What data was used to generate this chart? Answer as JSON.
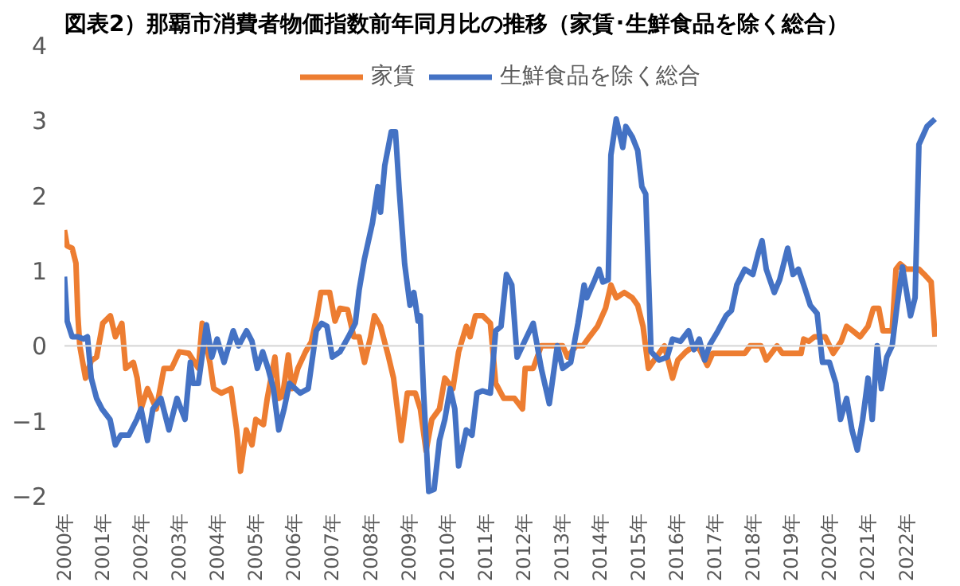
{
  "chart_data": {
    "type": "line",
    "title": "図表2）那覇市消費者物価指数前年同月比の推移（家賃･生鮮食品を除く総合）",
    "xlim": [
      2000,
      2022.8
    ],
    "ylim": [
      -2,
      4
    ],
    "yticks": [
      -2,
      -1,
      0,
      1,
      2,
      3,
      4
    ],
    "xticks": [
      {
        "value": 2000,
        "label": "2000年"
      },
      {
        "value": 2001,
        "label": "2001年"
      },
      {
        "value": 2002,
        "label": "2002年"
      },
      {
        "value": 2003,
        "label": "2003年"
      },
      {
        "value": 2004,
        "label": "2004年"
      },
      {
        "value": 2005,
        "label": "2005年"
      },
      {
        "value": 2006,
        "label": "2006年"
      },
      {
        "value": 2007,
        "label": "2007年"
      },
      {
        "value": 2008,
        "label": "2008年"
      },
      {
        "value": 2009,
        "label": "2009年"
      },
      {
        "value": 2010,
        "label": "2010年"
      },
      {
        "value": 2011,
        "label": "2011年"
      },
      {
        "value": 2012,
        "label": "2012年"
      },
      {
        "value": 2013,
        "label": "2013年"
      },
      {
        "value": 2014,
        "label": "2014年"
      },
      {
        "value": 2015,
        "label": "2015年"
      },
      {
        "value": 2016,
        "label": "2016年"
      },
      {
        "value": 2017,
        "label": "2017年"
      },
      {
        "value": 2018,
        "label": "2018年"
      },
      {
        "value": 2019,
        "label": "2019年"
      },
      {
        "value": 2020,
        "label": "2020年"
      },
      {
        "value": 2021,
        "label": "2021年"
      },
      {
        "value": 2022,
        "label": "2022年"
      }
    ],
    "grid": false,
    "legend": "top",
    "marker": "none",
    "line_style": "solid",
    "ref_lines": [
      {
        "axis": "y",
        "value": 0,
        "color": "#d9d9d9"
      }
    ],
    "series": [
      {
        "name": "家賃",
        "color": "#ed7d31",
        "x": [
          2000.0,
          2000.07,
          2000.2,
          2000.3,
          2000.35,
          2000.4,
          2000.55,
          2000.7,
          2000.84,
          2001.0,
          2001.2,
          2001.33,
          2001.5,
          2001.6,
          2001.8,
          2001.9,
          2002.0,
          2002.17,
          2002.4,
          2002.6,
          2002.8,
          2003.0,
          2003.25,
          2003.5,
          2003.6,
          2003.8,
          2003.9,
          2004.1,
          2004.35,
          2004.5,
          2004.6,
          2004.75,
          2004.9,
          2005.0,
          2005.2,
          2005.3,
          2005.5,
          2005.6,
          2005.7,
          2005.85,
          2005.95,
          2006.1,
          2006.3,
          2006.45,
          2006.6,
          2006.7,
          2006.93,
          2007.07,
          2007.2,
          2007.4,
          2007.56,
          2007.7,
          2007.84,
          2008.0,
          2008.1,
          2008.26,
          2008.47,
          2008.6,
          2008.8,
          2008.96,
          2009.17,
          2009.3,
          2009.45,
          2009.6,
          2009.8,
          2009.94,
          2010.15,
          2010.3,
          2010.5,
          2010.6,
          2010.74,
          2010.93,
          2011.13,
          2011.27,
          2011.48,
          2011.76,
          2011.97,
          2012.04,
          2012.25,
          2012.46,
          2013.02,
          2013.15,
          2013.37,
          2013.55,
          2013.72,
          2013.93,
          2014.14,
          2014.28,
          2014.42,
          2014.63,
          2014.84,
          2014.98,
          2015.12,
          2015.26,
          2015.47,
          2015.68,
          2015.89,
          2016.03,
          2016.24,
          2016.45,
          2016.6,
          2016.8,
          2016.94,
          2017.78,
          2017.92,
          2018.2,
          2018.34,
          2018.62,
          2018.76,
          2019.25,
          2019.32,
          2019.45,
          2019.6,
          2019.88,
          2020.09,
          2020.3,
          2020.44,
          2020.6,
          2020.79,
          2021.0,
          2021.14,
          2021.28,
          2021.39,
          2021.63,
          2021.73,
          2021.84,
          2022.0,
          2022.33,
          2022.47,
          2022.65,
          2022.75
        ],
        "values": [
          1.54,
          1.33,
          1.3,
          1.1,
          0.4,
          0.0,
          -0.43,
          -0.2,
          -0.15,
          0.3,
          0.4,
          0.12,
          0.3,
          -0.3,
          -0.22,
          -0.43,
          -0.84,
          -0.57,
          -0.84,
          -0.3,
          -0.3,
          -0.08,
          -0.1,
          -0.3,
          0.3,
          -0.22,
          -0.57,
          -0.63,
          -0.57,
          -1.12,
          -1.67,
          -1.12,
          -1.32,
          -0.98,
          -1.05,
          -0.7,
          -0.15,
          -0.7,
          -0.67,
          -0.12,
          -0.57,
          -0.3,
          -0.08,
          0.05,
          0.4,
          0.71,
          0.71,
          0.33,
          0.5,
          0.48,
          0.12,
          0.12,
          -0.22,
          0.12,
          0.4,
          0.26,
          -0.15,
          -0.43,
          -1.26,
          -0.63,
          -0.63,
          -0.84,
          -1.4,
          -0.98,
          -0.84,
          -0.43,
          -0.57,
          -0.08,
          0.26,
          0.12,
          0.4,
          0.4,
          0.3,
          -0.5,
          -0.7,
          -0.7,
          -0.84,
          -0.3,
          -0.3,
          0.0,
          0.0,
          -0.15,
          0.0,
          0.0,
          0.12,
          0.26,
          0.5,
          0.81,
          0.64,
          0.71,
          0.64,
          0.54,
          0.26,
          -0.3,
          -0.15,
          0.0,
          -0.43,
          -0.19,
          -0.08,
          0.0,
          -0.05,
          -0.26,
          -0.1,
          -0.1,
          0.0,
          0.0,
          -0.19,
          0.0,
          -0.1,
          -0.1,
          0.09,
          0.06,
          0.12,
          0.12,
          -0.1,
          0.06,
          0.26,
          0.2,
          0.12,
          0.26,
          0.5,
          0.5,
          0.2,
          0.2,
          1.02,
          1.09,
          1.02,
          1.02,
          0.95,
          0.85,
          0.12
        ]
      },
      {
        "name": "生鮮食品を除く総合",
        "color": "#4472c4",
        "x": [
          2000.0,
          2000.07,
          2000.2,
          2000.35,
          2000.5,
          2000.6,
          2000.7,
          2000.84,
          2000.98,
          2001.19,
          2001.33,
          2001.47,
          2001.68,
          2001.89,
          2002.0,
          2002.17,
          2002.31,
          2002.52,
          2002.73,
          2002.94,
          2003.15,
          2003.29,
          2003.36,
          2003.5,
          2003.71,
          2003.85,
          2003.99,
          2004.17,
          2004.41,
          2004.55,
          2004.76,
          2004.9,
          2005.04,
          2005.18,
          2005.32,
          2005.46,
          2005.6,
          2005.74,
          2005.88,
          2006.16,
          2006.37,
          2006.58,
          2006.72,
          2006.86,
          2007.0,
          2007.2,
          2007.42,
          2007.6,
          2007.7,
          2007.84,
          2008.05,
          2008.19,
          2008.26,
          2008.37,
          2008.54,
          2008.65,
          2008.75,
          2008.89,
          2009.03,
          2009.13,
          2009.24,
          2009.3,
          2009.38,
          2009.52,
          2009.66,
          2009.8,
          2009.94,
          2010.08,
          2010.2,
          2010.3,
          2010.5,
          2010.65,
          2010.78,
          2010.92,
          2011.13,
          2011.27,
          2011.41,
          2011.55,
          2011.69,
          2011.83,
          2011.97,
          2012.25,
          2012.46,
          2012.67,
          2012.88,
          2013.02,
          2013.23,
          2013.42,
          2013.58,
          2013.65,
          2013.86,
          2013.97,
          2014.07,
          2014.21,
          2014.28,
          2014.42,
          2014.59,
          2014.67,
          2014.84,
          2014.98,
          2015.09,
          2015.19,
          2015.33,
          2015.54,
          2015.75,
          2015.89,
          2016.1,
          2016.31,
          2016.45,
          2016.59,
          2016.73,
          2016.87,
          2017.08,
          2017.29,
          2017.43,
          2017.57,
          2017.78,
          2017.99,
          2018.13,
          2018.23,
          2018.34,
          2018.55,
          2018.69,
          2018.9,
          2019.04,
          2019.18,
          2019.32,
          2019.49,
          2019.67,
          2019.81,
          2019.99,
          2020.16,
          2020.28,
          2020.44,
          2020.58,
          2020.72,
          2020.86,
          2021.0,
          2021.11,
          2021.24,
          2021.35,
          2021.49,
          2021.63,
          2021.76,
          2021.9,
          2022.11,
          2022.23,
          2022.33,
          2022.54,
          2022.75
        ],
        "values": [
          0.92,
          0.33,
          0.12,
          0.12,
          0.09,
          0.12,
          -0.43,
          -0.7,
          -0.84,
          -0.98,
          -1.32,
          -1.19,
          -1.19,
          -0.98,
          -0.84,
          -1.26,
          -0.84,
          -0.7,
          -1.12,
          -0.7,
          -0.98,
          -0.22,
          -0.5,
          -0.5,
          0.28,
          -0.15,
          0.09,
          -0.22,
          0.2,
          0.0,
          0.2,
          0.06,
          -0.3,
          -0.08,
          -0.3,
          -0.57,
          -1.12,
          -0.84,
          -0.5,
          -0.63,
          -0.57,
          0.2,
          0.3,
          0.26,
          -0.15,
          -0.08,
          0.12,
          0.3,
          0.74,
          1.16,
          1.64,
          2.12,
          1.78,
          2.4,
          2.85,
          2.85,
          2.06,
          1.09,
          0.54,
          0.71,
          0.33,
          0.4,
          -0.57,
          -1.94,
          -1.91,
          -1.26,
          -0.98,
          -0.57,
          -0.84,
          -1.6,
          -1.12,
          -1.19,
          -0.63,
          -0.6,
          -0.63,
          0.2,
          0.26,
          0.95,
          0.81,
          -0.15,
          0.0,
          0.3,
          -0.3,
          -0.77,
          0.0,
          -0.3,
          -0.22,
          0.3,
          0.81,
          0.64,
          0.88,
          1.02,
          0.85,
          0.88,
          2.54,
          3.02,
          2.64,
          2.92,
          2.78,
          2.6,
          2.12,
          2.02,
          -0.08,
          -0.19,
          -0.15,
          0.09,
          0.06,
          0.2,
          -0.05,
          0.09,
          -0.19,
          0.02,
          0.2,
          0.4,
          0.47,
          0.81,
          1.02,
          0.95,
          1.23,
          1.4,
          1.02,
          0.71,
          0.88,
          1.3,
          0.95,
          1.02,
          0.81,
          0.54,
          0.43,
          -0.22,
          -0.22,
          -0.5,
          -0.98,
          -0.7,
          -1.12,
          -1.39,
          -0.98,
          -0.43,
          -0.98,
          0.0,
          -0.57,
          -0.15,
          0.0,
          0.54,
          1.05,
          0.4,
          0.64,
          2.68,
          2.92,
          3.02
        ]
      }
    ]
  }
}
